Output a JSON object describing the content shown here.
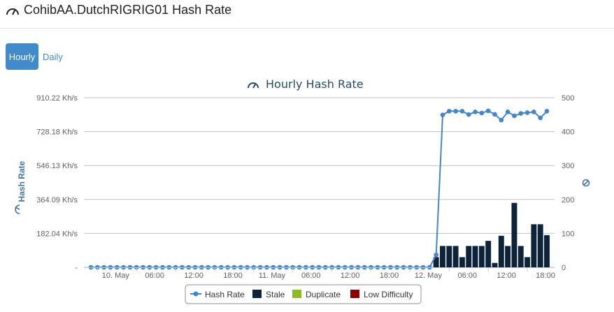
{
  "page": {
    "title": "CohibAA.DutchRIGRIG01 Hash Rate"
  },
  "tabs": [
    {
      "label": "Hourly",
      "active": true
    },
    {
      "label": "Daily",
      "active": false
    }
  ],
  "colors": {
    "hash_rate": "#4285d0",
    "stale": "#0d233a",
    "duplicate": "#8bbc21",
    "low_difficulty": "#910000",
    "accent": "#428bca"
  },
  "chart_data": {
    "type": "bar+line",
    "title": "Hourly Hash Rate",
    "ylabel": "Hash Rate",
    "y_left": {
      "ticks": [
        "-",
        "182.04 Kh/s",
        "364.09 Kh/s",
        "546.13 Kh/s",
        "728.18 Kh/s",
        "910.22 Kh/s"
      ],
      "min": 0,
      "max": 910.22,
      "unit": "Kh/s"
    },
    "y_right": {
      "ticks": [
        "0",
        "100",
        "200",
        "300",
        "400",
        "500"
      ],
      "min": 0,
      "max": 500,
      "icon": "block-icon"
    },
    "x_ticks": [
      {
        "i": 1,
        "label": "10. May"
      },
      {
        "i": 7,
        "label": "06:00"
      },
      {
        "i": 13,
        "label": "12:00"
      },
      {
        "i": 19,
        "label": "18:00"
      },
      {
        "i": 25,
        "label": "11. May"
      },
      {
        "i": 31,
        "label": "06:00"
      },
      {
        "i": 37,
        "label": "12:00"
      },
      {
        "i": 43,
        "label": "18:00"
      },
      {
        "i": 49,
        "label": "12. May"
      },
      {
        "i": 55,
        "label": "06:00"
      },
      {
        "i": 61,
        "label": "12:00"
      },
      {
        "i": 67,
        "label": "18:00"
      }
    ],
    "hash_rate_kh": [
      0,
      0,
      0,
      0,
      0,
      0,
      0,
      0,
      0,
      0,
      0,
      0,
      0,
      0,
      0,
      0,
      0,
      0,
      0,
      0,
      0,
      0,
      0,
      0,
      0,
      0,
      0,
      0,
      0,
      0,
      0,
      0,
      0,
      0,
      0,
      0,
      0,
      0,
      0,
      0,
      0,
      0,
      0,
      0,
      0,
      0,
      0,
      0,
      0,
      0,
      0,
      0,
      0,
      67,
      818,
      838,
      838,
      838,
      820,
      834,
      828,
      840,
      821,
      790,
      834,
      813,
      826,
      830,
      834,
      802,
      838
    ],
    "series": [
      {
        "name": "Hash Rate"
      },
      {
        "name": "Stale",
        "values": [
          0,
          0,
          0,
          0,
          0,
          0,
          0,
          0,
          0,
          0,
          0,
          0,
          0,
          0,
          0,
          0,
          0,
          0,
          0,
          0,
          0,
          0,
          0,
          0,
          0,
          0,
          0,
          0,
          0,
          0,
          0,
          0,
          0,
          0,
          0,
          0,
          0,
          0,
          0,
          0,
          0,
          0,
          0,
          0,
          0,
          0,
          0,
          0,
          0,
          0,
          0,
          0,
          0,
          30,
          63,
          63,
          63,
          30,
          63,
          63,
          63,
          78,
          13,
          93,
          63,
          190,
          63,
          30,
          127,
          127,
          95
        ]
      },
      {
        "name": "Duplicate",
        "values": []
      },
      {
        "name": "Low Difficulty",
        "values": []
      }
    ],
    "legend_position": "bottom-center",
    "grid": true
  }
}
